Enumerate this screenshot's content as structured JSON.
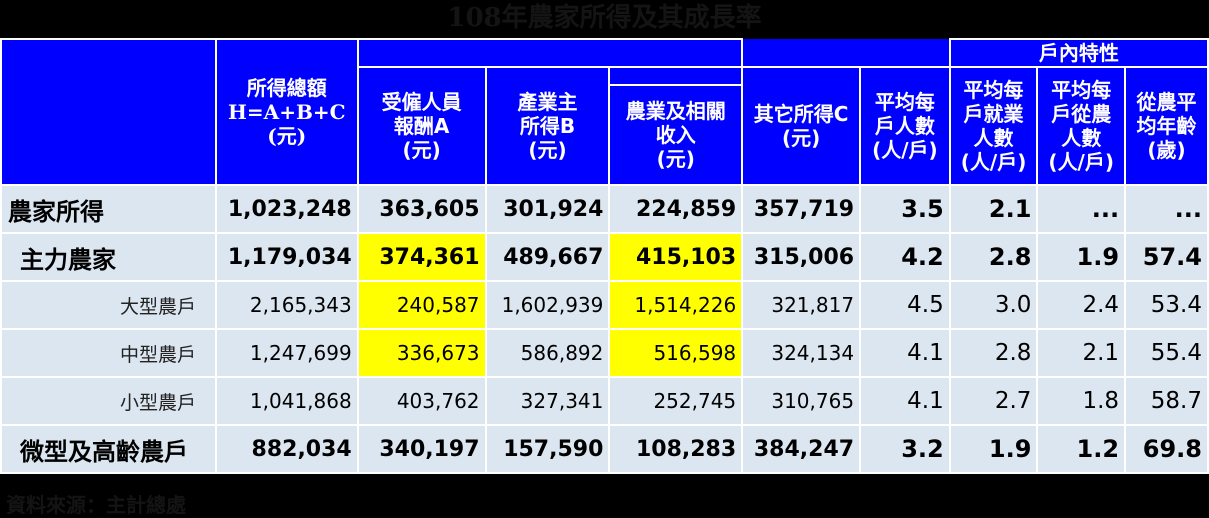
{
  "title": "108年農家所得及其成長率",
  "source": "資料來源：主計總處",
  "header": {
    "group_label": "戶內特性",
    "cols": [
      {
        "lines": [
          "所得總額",
          "H=A+B+C",
          "(元)"
        ]
      },
      {
        "lines": [
          "受僱人員",
          "報酬A",
          "(元)"
        ]
      },
      {
        "lines": [
          "產業主",
          "所得B",
          "(元)"
        ]
      },
      {
        "lines": [
          "農業及相關",
          "收入",
          "(元)"
        ]
      },
      {
        "lines": [
          "其它所得C",
          "(元)"
        ]
      },
      {
        "lines": [
          "平均每",
          "戶人數",
          "(人/戶)"
        ]
      },
      {
        "lines": [
          "平均每",
          "戶就業",
          "人數",
          "(人/戶)"
        ]
      },
      {
        "lines": [
          "平均每",
          "戶從農",
          "人數",
          "(人/戶)"
        ]
      },
      {
        "lines": [
          "從農平",
          "均年齡",
          "(歲)"
        ]
      }
    ]
  },
  "rows": [
    {
      "label": "農家所得",
      "values": [
        "1,023,248",
        "363,605",
        "301,924",
        "224,859",
        "357,719",
        "3.5",
        "2.1",
        "...",
        "..."
      ]
    },
    {
      "label": "主力農家",
      "values": [
        "1,179,034",
        "374,361",
        "489,667",
        "415,103",
        "315,006",
        "4.2",
        "2.8",
        "1.9",
        "57.4"
      ]
    },
    {
      "label": "大型農戶",
      "values": [
        "2,165,343",
        "240,587",
        "1,602,939",
        "1,514,226",
        "321,817",
        "4.5",
        "3.0",
        "2.4",
        "53.4"
      ]
    },
    {
      "label": "中型農戶",
      "values": [
        "1,247,699",
        "336,673",
        "586,892",
        "516,598",
        "324,134",
        "4.1",
        "2.8",
        "2.1",
        "55.4"
      ]
    },
    {
      "label": "小型農戶",
      "values": [
        "1,041,868",
        "403,762",
        "327,341",
        "252,745",
        "310,765",
        "4.1",
        "2.7",
        "1.8",
        "58.7"
      ]
    },
    {
      "label": "微型及高齡農戶",
      "values": [
        "882,034",
        "340,197",
        "157,590",
        "108,283",
        "384,247",
        "3.2",
        "1.9",
        "1.2",
        "69.8"
      ]
    }
  ],
  "highlight_color": "#ffff00",
  "header_color": "#0000ff",
  "body_color": "#dce6f0"
}
